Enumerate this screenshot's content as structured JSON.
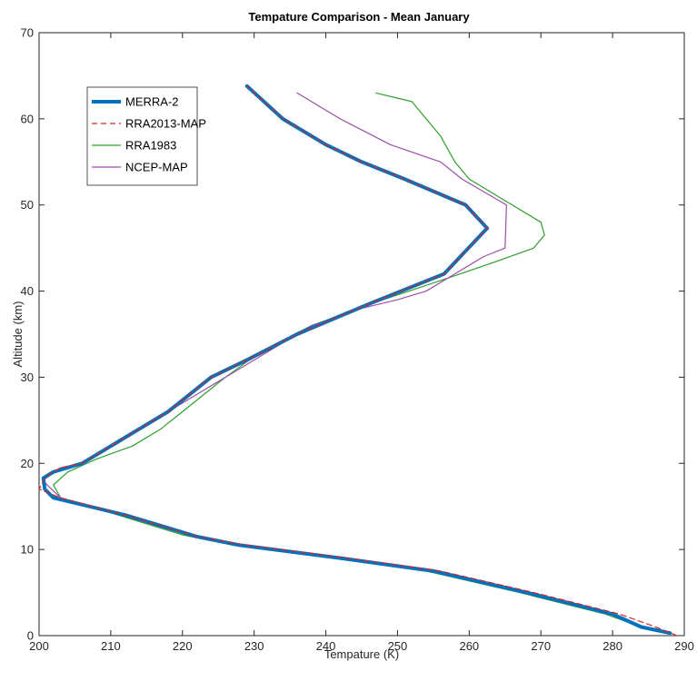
{
  "chart_data": {
    "type": "line",
    "title": "Tempature Comparison - Mean January",
    "xlabel": "Tempature (K)",
    "ylabel": "Altitude (km)",
    "xlim": [
      200,
      290
    ],
    "ylim": [
      0,
      70
    ],
    "xticks": [
      200,
      210,
      220,
      230,
      240,
      250,
      260,
      270,
      280,
      290
    ],
    "yticks": [
      0,
      10,
      20,
      30,
      40,
      50,
      60,
      70
    ],
    "grid": false,
    "legend_position": "top-left",
    "series": [
      {
        "name": "MERRA-2",
        "color": "#0072BD",
        "style": "solid-thick",
        "points": [
          [
            288,
            0.3
          ],
          [
            284,
            1
          ],
          [
            280,
            2.5
          ],
          [
            268,
            5
          ],
          [
            255,
            7.5
          ],
          [
            242,
            9
          ],
          [
            228,
            10.5
          ],
          [
            222,
            11.5
          ],
          [
            212,
            14
          ],
          [
            202,
            16
          ],
          [
            200.8,
            17
          ],
          [
            200.6,
            18.3
          ],
          [
            202,
            19
          ],
          [
            206,
            20
          ],
          [
            210,
            22
          ],
          [
            214,
            24
          ],
          [
            218,
            26
          ],
          [
            221,
            28
          ],
          [
            224,
            30
          ],
          [
            229,
            32
          ],
          [
            236,
            35
          ],
          [
            246,
            38.5
          ],
          [
            256.5,
            42
          ],
          [
            262.5,
            47.3
          ],
          [
            259.5,
            50
          ],
          [
            251,
            53
          ],
          [
            245,
            55
          ],
          [
            240,
            57
          ],
          [
            234,
            60
          ],
          [
            229,
            63.8
          ]
        ]
      },
      {
        "name": "RRA2013-MAP",
        "color": "#D62728",
        "style": "dashed",
        "points": [
          [
            289,
            0
          ],
          [
            286,
            1
          ],
          [
            281,
            2.5
          ],
          [
            269,
            5
          ],
          [
            256,
            7.5
          ],
          [
            243,
            9
          ],
          [
            229,
            10.5
          ],
          [
            222,
            11.5
          ],
          [
            212,
            14
          ],
          [
            203,
            16
          ],
          [
            200,
            17
          ],
          [
            201,
            18.5
          ],
          [
            203,
            19.5
          ],
          [
            206,
            20
          ],
          [
            210,
            22
          ],
          [
            214,
            24
          ],
          [
            218,
            26
          ],
          [
            221,
            28
          ],
          [
            224,
            30
          ],
          [
            229,
            32
          ],
          [
            236,
            35
          ],
          [
            246,
            38.5
          ],
          [
            256.5,
            42
          ],
          [
            262.5,
            47.3
          ],
          [
            259.5,
            50
          ],
          [
            251,
            53
          ],
          [
            245,
            55
          ],
          [
            240,
            57
          ],
          [
            234,
            60
          ],
          [
            229,
            63.8
          ]
        ]
      },
      {
        "name": "RRA1983",
        "color": "#2CA02C",
        "style": "solid",
        "points": [
          [
            288,
            0.2
          ],
          [
            284,
            1
          ],
          [
            279,
            2.5
          ],
          [
            267,
            5
          ],
          [
            254,
            7.5
          ],
          [
            241,
            9
          ],
          [
            227,
            10.5
          ],
          [
            220,
            11.7
          ],
          [
            211,
            14
          ],
          [
            203,
            16
          ],
          [
            202,
            17.5
          ],
          [
            204,
            19
          ],
          [
            208,
            20.5
          ],
          [
            213,
            22
          ],
          [
            217,
            24
          ],
          [
            220,
            26
          ],
          [
            223,
            28
          ],
          [
            226,
            30
          ],
          [
            231,
            33
          ],
          [
            238,
            36
          ],
          [
            248,
            39
          ],
          [
            257,
            41.5
          ],
          [
            264,
            43.5
          ],
          [
            269,
            45
          ],
          [
            270.5,
            46.5
          ],
          [
            270,
            48
          ],
          [
            266,
            50
          ],
          [
            260,
            53
          ],
          [
            258,
            55
          ],
          [
            256,
            58
          ],
          [
            254,
            60
          ],
          [
            252,
            62
          ],
          [
            247,
            63
          ]
        ]
      },
      {
        "name": "NCEP-MAP",
        "color": "#9B4FA8",
        "style": "solid",
        "points": [
          [
            288,
            0.2
          ],
          [
            284,
            1
          ],
          [
            280,
            2.5
          ],
          [
            268,
            5
          ],
          [
            255,
            7.5
          ],
          [
            242,
            9
          ],
          [
            228,
            10.5
          ],
          [
            221,
            11.6
          ],
          [
            212,
            14
          ],
          [
            203,
            16
          ],
          [
            200.5,
            18
          ],
          [
            203,
            19.5
          ],
          [
            206,
            20
          ],
          [
            210,
            22
          ],
          [
            214,
            24
          ],
          [
            218,
            26
          ],
          [
            222,
            28
          ],
          [
            226,
            30
          ],
          [
            232,
            33
          ],
          [
            238,
            36
          ],
          [
            245,
            38
          ],
          [
            250,
            39
          ],
          [
            254,
            40
          ],
          [
            258,
            42
          ],
          [
            262,
            44
          ],
          [
            265,
            45
          ],
          [
            265.2,
            50
          ],
          [
            259,
            53
          ],
          [
            256,
            55
          ],
          [
            249,
            57
          ],
          [
            242,
            60
          ],
          [
            236,
            63
          ]
        ]
      }
    ]
  }
}
